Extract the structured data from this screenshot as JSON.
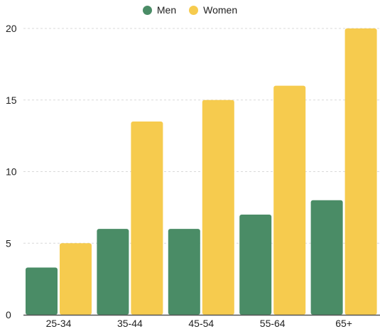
{
  "chart_data": {
    "type": "bar",
    "title": "",
    "xlabel": "",
    "ylabel": "",
    "categories": [
      "25-34",
      "35-44",
      "45-54",
      "55-64",
      "65+"
    ],
    "series": [
      {
        "name": "Men",
        "color": "#4a8c66",
        "values": [
          3.3,
          6.0,
          6.0,
          7.0,
          8.0
        ]
      },
      {
        "name": "Women",
        "color": "#f6cb4e",
        "values": [
          5.0,
          13.5,
          15.0,
          16.0,
          20.0
        ]
      }
    ],
    "yticks": [
      "0",
      "5",
      "10",
      "15",
      "20"
    ],
    "ylim": [
      0,
      20
    ],
    "grid": true,
    "legend_position": "top-center"
  }
}
